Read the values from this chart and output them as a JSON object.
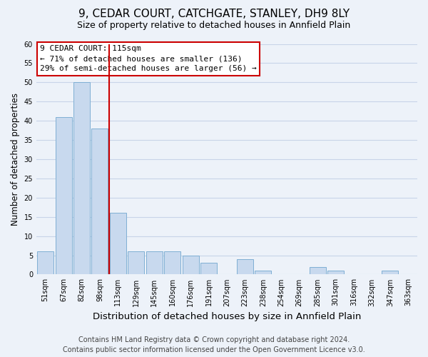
{
  "title": "9, CEDAR COURT, CATCHGATE, STANLEY, DH9 8LY",
  "subtitle": "Size of property relative to detached houses in Annfield Plain",
  "xlabel": "Distribution of detached houses by size in Annfield Plain",
  "ylabel": "Number of detached properties",
  "bar_labels": [
    "51sqm",
    "67sqm",
    "82sqm",
    "98sqm",
    "113sqm",
    "129sqm",
    "145sqm",
    "160sqm",
    "176sqm",
    "191sqm",
    "207sqm",
    "223sqm",
    "238sqm",
    "254sqm",
    "269sqm",
    "285sqm",
    "301sqm",
    "316sqm",
    "332sqm",
    "347sqm",
    "363sqm"
  ],
  "bar_values": [
    6,
    41,
    50,
    38,
    16,
    6,
    6,
    6,
    5,
    3,
    0,
    4,
    1,
    0,
    0,
    2,
    1,
    0,
    0,
    1,
    0
  ],
  "bar_color": "#c8d9ee",
  "bar_edge_color": "#7fafd4",
  "vline_pos": 3.5,
  "vline_color": "#cc0000",
  "ylim": [
    0,
    60
  ],
  "yticks": [
    0,
    5,
    10,
    15,
    20,
    25,
    30,
    35,
    40,
    45,
    50,
    55,
    60
  ],
  "annotation_title": "9 CEDAR COURT: 115sqm",
  "annotation_line1": "← 71% of detached houses are smaller (136)",
  "annotation_line2": "29% of semi-detached houses are larger (56) →",
  "annotation_box_facecolor": "#ffffff",
  "annotation_box_edgecolor": "#cc0000",
  "footer_line1": "Contains HM Land Registry data © Crown copyright and database right 2024.",
  "footer_line2": "Contains public sector information licensed under the Open Government Licence v3.0.",
  "background_color": "#edf2f9",
  "grid_color": "#c8d4e8",
  "title_fontsize": 11,
  "subtitle_fontsize": 9,
  "xlabel_fontsize": 9.5,
  "ylabel_fontsize": 8.5,
  "tick_fontsize": 7,
  "annotation_fontsize": 8,
  "footer_fontsize": 7
}
